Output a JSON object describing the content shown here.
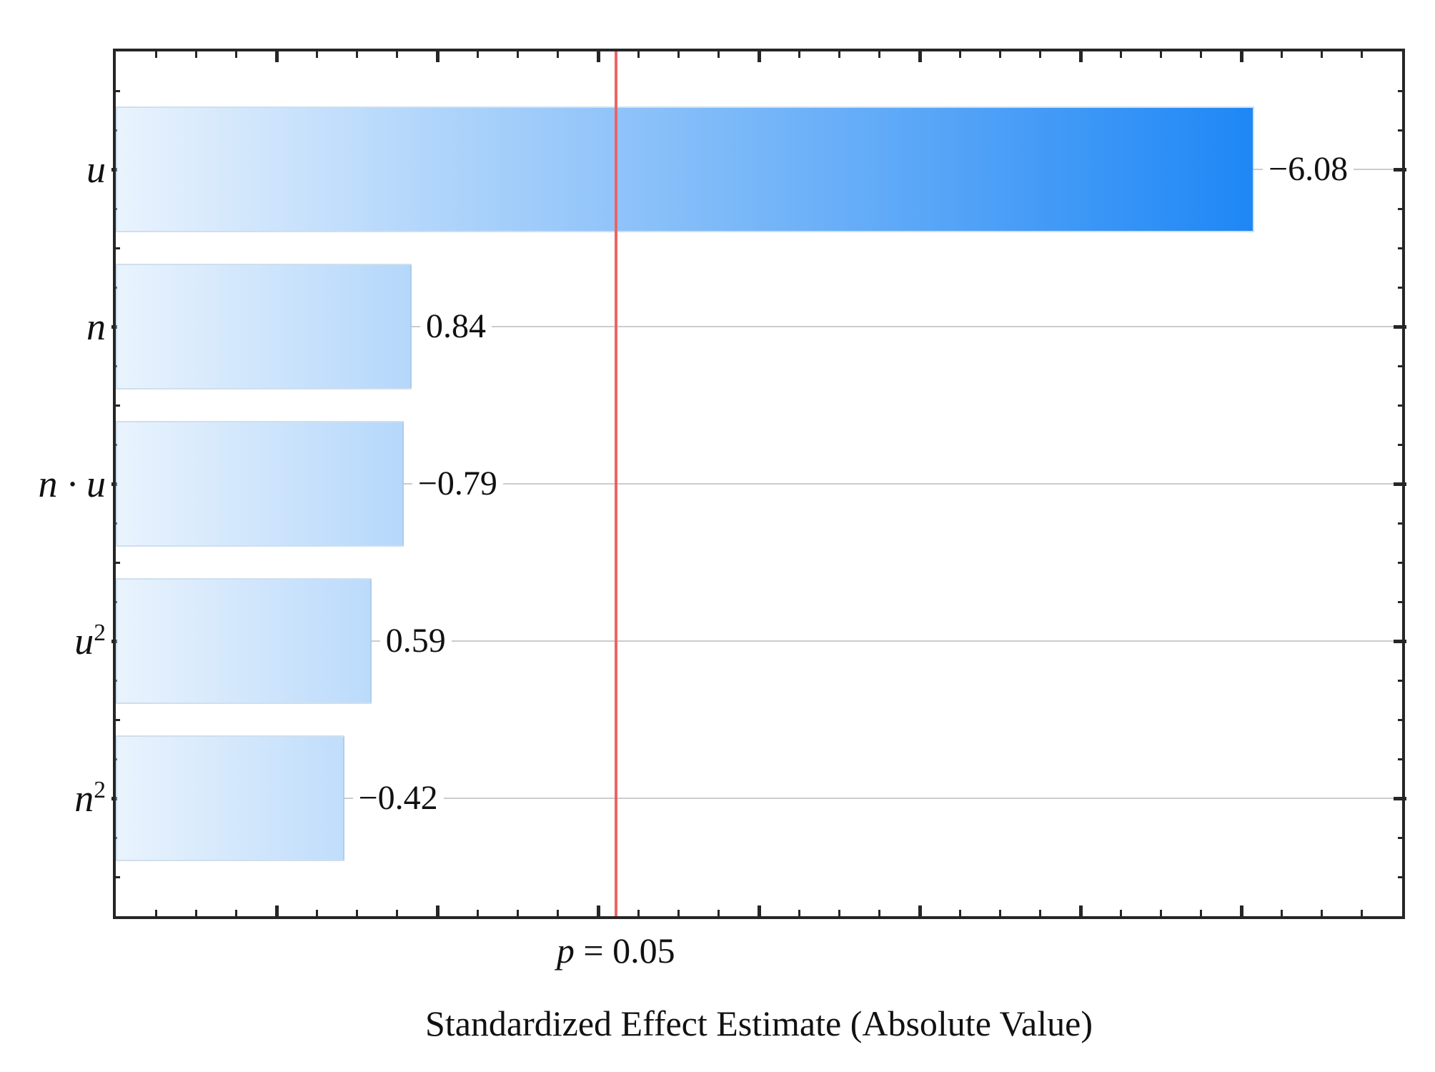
{
  "chart_data": {
    "type": "bar",
    "orientation": "horizontal",
    "title": "",
    "xlabel": "Standardized Effect Estimate (Absolute Value)",
    "ylabel": "",
    "categories": [
      {
        "base": "u",
        "sup": ""
      },
      {
        "base": "n",
        "sup": ""
      },
      {
        "base": "n · u",
        "sup": ""
      },
      {
        "base": "u",
        "sup": "2"
      },
      {
        "base": "n",
        "sup": "2"
      }
    ],
    "values": [
      -6.08,
      0.84,
      -0.79,
      0.59,
      -0.42
    ],
    "value_labels": [
      "−6.08",
      "0.84",
      "−0.79",
      "0.59",
      "−0.42"
    ],
    "xlim": [
      -1,
      7
    ],
    "x_major_step": 1,
    "x_minor_step": 0.25,
    "grid": "horizontal-lines-at-category-centers",
    "legend": "none",
    "significance_line": {
      "x": 2.11,
      "label_var": "p",
      "label_rest": " = 0.05",
      "color": "#ec6464"
    },
    "colors": {
      "bar_gradient_start": "#e9f3fd",
      "bar_gradient_end": "#1e87f5",
      "bar_border": "#9fc0de",
      "grid_color": "#cccccc",
      "axis_color": "#262626",
      "text_color": "#111111",
      "background": "#ffffff"
    }
  }
}
